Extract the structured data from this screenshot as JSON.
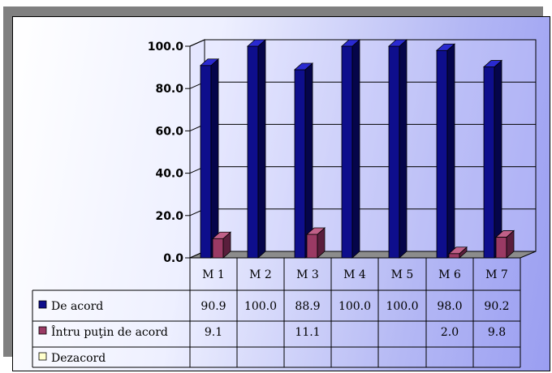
{
  "chart_data": {
    "type": "bar",
    "categories": [
      "M 1",
      "M 2",
      "M 3",
      "M 4",
      "M 5",
      "M 6",
      "M 7"
    ],
    "series": [
      {
        "name": "De acord",
        "values": [
          90.9,
          100.0,
          88.9,
          100.0,
          100.0,
          98.0,
          90.2
        ],
        "labels": [
          "90.9",
          "100.0",
          "88.9",
          "100.0",
          "100.0",
          "98.0",
          "90.2"
        ],
        "color": "#0e0e8c",
        "top": "#2a2ad0",
        "side": "#05054a"
      },
      {
        "name": "Întru puţin de acord",
        "values": [
          9.1,
          null,
          11.1,
          null,
          null,
          2.0,
          9.8
        ],
        "labels": [
          "9.1",
          "",
          "11.1",
          "",
          "",
          "2.0",
          "9.8"
        ],
        "color": "#9a3a64",
        "top": "#c06088",
        "side": "#5a1e3c"
      },
      {
        "name": "Dezacord",
        "values": [
          null,
          null,
          null,
          null,
          null,
          null,
          null
        ],
        "labels": [
          "",
          "",
          "",
          "",
          "",
          "",
          ""
        ],
        "color": "#ffffcc",
        "top": "#ffffe0",
        "side": "#cccc99"
      }
    ],
    "ylim": [
      0,
      100
    ],
    "yticks": [
      "0.0",
      "20.0",
      "40.0",
      "60.0",
      "80.0",
      "100.0"
    ],
    "grid": true,
    "legend": "data-table"
  }
}
